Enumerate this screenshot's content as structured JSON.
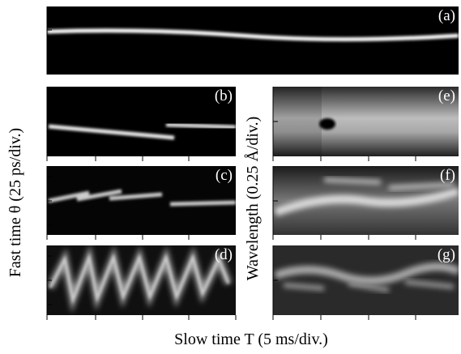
{
  "panels": [
    "(a)",
    "(b)",
    "(c)",
    "(d)",
    "(e)",
    "(f)",
    "(g)"
  ],
  "axis_labels": {
    "fast_time": "Fast time θ (25 ps/div.)",
    "wavelength": "Wavelength (0.25 Å/div.)",
    "slow_time": "Slow time T (5 ms/div.)"
  }
}
